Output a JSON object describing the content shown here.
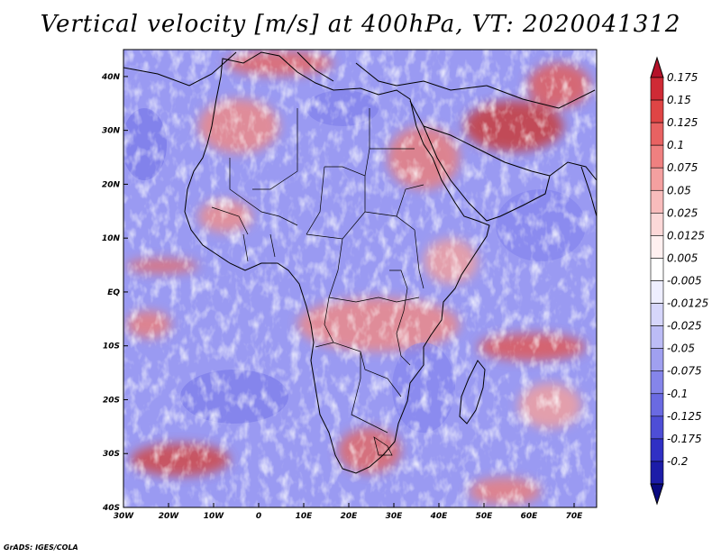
{
  "title": "Vertical velocity [m/s] at 400hPa, VT: 2020041312",
  "credit": "GrADS: IGES/COLA",
  "map": {
    "lon_range": [
      -30,
      75
    ],
    "lat_range": [
      -40,
      45
    ],
    "lon_ticks": [
      {
        "value": -30,
        "label": "30W"
      },
      {
        "value": -20,
        "label": "20W"
      },
      {
        "value": -10,
        "label": "10W"
      },
      {
        "value": 0,
        "label": "0"
      },
      {
        "value": 10,
        "label": "10E"
      },
      {
        "value": 20,
        "label": "20E"
      },
      {
        "value": 30,
        "label": "30E"
      },
      {
        "value": 40,
        "label": "40E"
      },
      {
        "value": 50,
        "label": "50E"
      },
      {
        "value": 60,
        "label": "60E"
      },
      {
        "value": 70,
        "label": "70E"
      }
    ],
    "lat_ticks": [
      {
        "value": 40,
        "label": "40N"
      },
      {
        "value": 30,
        "label": "30N"
      },
      {
        "value": 20,
        "label": "20N"
      },
      {
        "value": 10,
        "label": "10N"
      },
      {
        "value": 0,
        "label": "EQ"
      },
      {
        "value": -10,
        "label": "10S"
      },
      {
        "value": -20,
        "label": "20S"
      },
      {
        "value": -30,
        "label": "30S"
      },
      {
        "value": -40,
        "label": "40S"
      }
    ]
  },
  "colorbar": {
    "labels": [
      "0.175",
      "0.15",
      "0.125",
      "0.1",
      "0.075",
      "0.05",
      "0.025",
      "0.0125",
      "0.005",
      "-0.005",
      "-0.0125",
      "-0.025",
      "-0.05",
      "-0.075",
      "-0.1",
      "-0.125",
      "-0.175",
      "-0.2"
    ],
    "colors": [
      "#b5122a",
      "#cf2a35",
      "#df4545",
      "#e86262",
      "#ef8080",
      "#f4a0a0",
      "#f8bcbc",
      "#fcd8d8",
      "#fff0f0",
      "#ffffff",
      "#eeeeff",
      "#d6d6fb",
      "#bcbcf6",
      "#a0a0f0",
      "#8585ea",
      "#6a6ae2",
      "#4e4ed6",
      "#3030c4",
      "#1c1ca8",
      "#0a0a80"
    ]
  },
  "colors": {
    "field_blue": "#8b8bf0",
    "field_red": "#e87070",
    "border": "#000000"
  }
}
